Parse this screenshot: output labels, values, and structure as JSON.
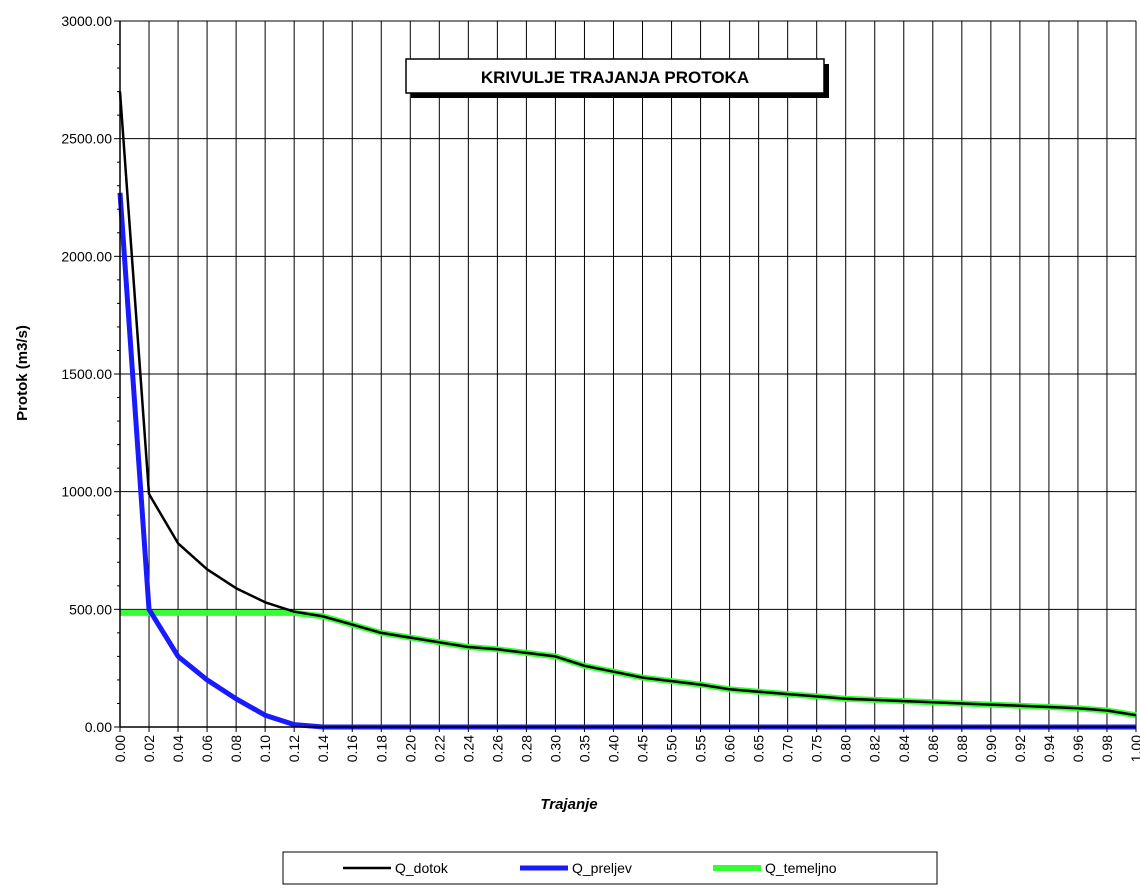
{
  "chart_data": {
    "type": "line",
    "title": "KRIVULJE TRAJANJA PROTOKA",
    "xlabel": "Trajanje",
    "ylabel": "Protok (m3/s)",
    "ylim": [
      0,
      3000
    ],
    "y_ticks": [
      "0.00",
      "500.00",
      "1000.00",
      "1500.00",
      "2000.00",
      "2500.00",
      "3000.00"
    ],
    "grid": "vertical gridlines at every category, horizontal gridlines at major y ticks",
    "legend_position": "bottom",
    "categories": [
      "0.00",
      "0.02",
      "0.04",
      "0.06",
      "0.08",
      "0.10",
      "0.12",
      "0.14",
      "0.16",
      "0.18",
      "0.20",
      "0.22",
      "0.24",
      "0.26",
      "0.28",
      "0.30",
      "0.35",
      "0.40",
      "0.45",
      "0.50",
      "0.55",
      "0.60",
      "0.65",
      "0.70",
      "0.75",
      "0.80",
      "0.82",
      "0.84",
      "0.86",
      "0.88",
      "0.90",
      "0.92",
      "0.94",
      "0.96",
      "0.98",
      "1.00"
    ],
    "series": [
      {
        "name": "Q_dotok",
        "color": "#000000",
        "values": [
          2700,
          990,
          780,
          670,
          590,
          530,
          490,
          470,
          435,
          400,
          380,
          360,
          340,
          330,
          315,
          300,
          260,
          235,
          210,
          195,
          180,
          160,
          150,
          140,
          130,
          120,
          115,
          110,
          105,
          100,
          95,
          90,
          85,
          80,
          70,
          50
        ]
      },
      {
        "name": "Q_preljev",
        "color": "#1a1aff",
        "values": [
          2270,
          500,
          300,
          200,
          120,
          50,
          10,
          0,
          0,
          0,
          0,
          0,
          0,
          0,
          0,
          0,
          0,
          0,
          0,
          0,
          0,
          0,
          0,
          0,
          0,
          0,
          0,
          0,
          0,
          0,
          0,
          0,
          0,
          0,
          0,
          0
        ]
      },
      {
        "name": "Q_temeljno",
        "color": "#33ff33",
        "values": [
          485,
          485,
          485,
          485,
          485,
          485,
          485,
          470,
          435,
          400,
          380,
          360,
          340,
          330,
          315,
          300,
          260,
          235,
          210,
          195,
          180,
          160,
          150,
          140,
          130,
          120,
          115,
          110,
          105,
          100,
          95,
          90,
          85,
          80,
          70,
          50
        ]
      }
    ]
  }
}
